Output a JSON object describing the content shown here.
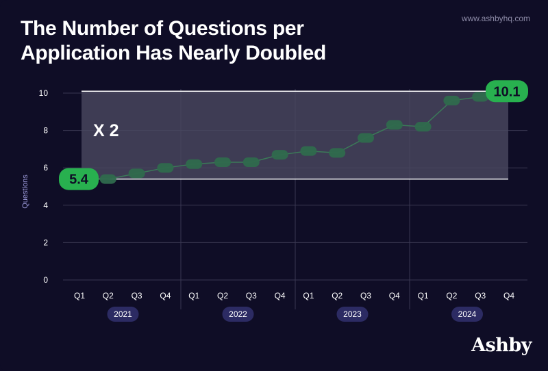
{
  "header": {
    "title_line1": "The Number of Questions per",
    "title_line2": "Application Has Nearly Doubled",
    "site": "www.ashbyhq.com",
    "brand": "Ashby"
  },
  "chart_data": {
    "type": "line",
    "title": "The Number of Questions per Application Has Nearly Doubled",
    "ylabel": "Questions",
    "xlabel": "",
    "ylim": [
      0,
      10.5
    ],
    "yticks": [
      0,
      2,
      4,
      6,
      8,
      10
    ],
    "grid": true,
    "quarters": [
      "Q1",
      "Q2",
      "Q3",
      "Q4",
      "Q1",
      "Q2",
      "Q3",
      "Q4",
      "Q1",
      "Q2",
      "Q3",
      "Q4",
      "Q1",
      "Q2",
      "Q3",
      "Q4"
    ],
    "years": [
      "2021",
      "2022",
      "2023",
      "2024"
    ],
    "values": [
      5.4,
      5.4,
      5.7,
      6.0,
      6.2,
      6.3,
      6.3,
      6.7,
      6.9,
      6.8,
      7.6,
      8.3,
      8.2,
      9.6,
      9.8,
      10.1
    ],
    "band": {
      "low": 5.4,
      "high": 10.1,
      "label": "X 2"
    },
    "callouts": [
      {
        "index": 0,
        "text": "5.4"
      },
      {
        "index": 15,
        "text": "10.1"
      }
    ],
    "colors": {
      "background": "#0f0d26",
      "line": "#3b7a58",
      "marker": "#2f6a4d",
      "callout": "#28b04f",
      "band": "#4a4860",
      "year_pill": "#2c2b63",
      "grid": "#3a3852"
    }
  }
}
